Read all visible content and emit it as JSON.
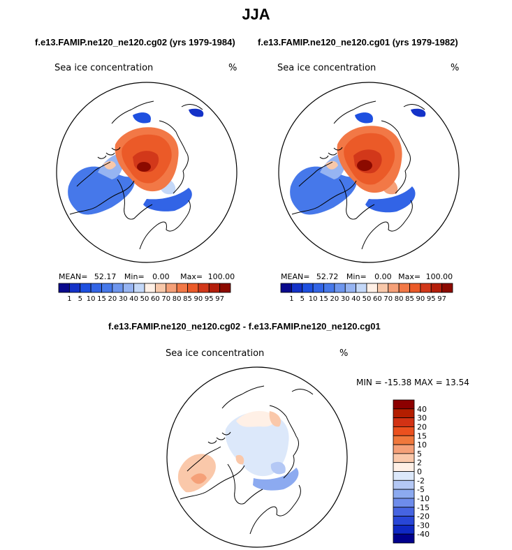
{
  "title": "JJA",
  "panels": [
    {
      "subtitle": "f.e13.FAMIP.ne120_ne120.cg02 (yrs 1979-1984)",
      "variable": "Sea ice concentration",
      "units": "%",
      "stats": {
        "mean_label": "MEAN=",
        "mean": "52.17",
        "min_label": "Min=",
        "min": "0.00",
        "max_label": "Max=",
        "max": "100.00"
      }
    },
    {
      "subtitle": "f.e13.FAMIP.ne120_ne120.cg01 (yrs 1979-1982)",
      "variable": "Sea ice concentration",
      "units": "%",
      "stats": {
        "mean_label": "MEAN=",
        "mean": "52.72",
        "min_label": "Min=",
        "min": "0.00",
        "max_label": "Max=",
        "max": "100.00"
      }
    }
  ],
  "diff_panel": {
    "subtitle": "f.e13.FAMIP.ne120_ne120.cg02 - f.e13.FAMIP.ne120_ne120.cg01",
    "variable": "Sea ice concentration",
    "units": "%",
    "minmax": "MIN = -15.38 MAX =  13.54"
  },
  "chart_data": [
    {
      "type": "heatmap",
      "projection": "north polar stereographic",
      "title": "f.e13.FAMIP.ne120_ne120.cg02 (yrs 1979-1984)",
      "variable": "Sea ice concentration (%)",
      "mean": 52.17,
      "min": 0.0,
      "max": 100.0,
      "levels": [
        "1",
        "5",
        "10",
        "15",
        "20",
        "30",
        "40",
        "50",
        "60",
        "70",
        "80",
        "85",
        "90",
        "95",
        "97"
      ],
      "colors": [
        "#0a0a8c",
        "#1432c8",
        "#1e50e0",
        "#3264e6",
        "#4678ea",
        "#6e96ee",
        "#96b4f2",
        "#c4d8f8",
        "#fff0e6",
        "#f8c8aa",
        "#f5a078",
        "#f27846",
        "#eb5a28",
        "#d2381a",
        "#b41e0a",
        "#8c0a00"
      ]
    },
    {
      "type": "heatmap",
      "projection": "north polar stereographic",
      "title": "f.e13.FAMIP.ne120_ne120.cg01 (yrs 1979-1982)",
      "variable": "Sea ice concentration (%)",
      "mean": 52.72,
      "min": 0.0,
      "max": 100.0,
      "levels": [
        "1",
        "5",
        "10",
        "15",
        "20",
        "30",
        "40",
        "50",
        "60",
        "70",
        "80",
        "85",
        "90",
        "95",
        "97"
      ],
      "colors": [
        "#0a0a8c",
        "#1432c8",
        "#1e50e0",
        "#3264e6",
        "#4678ea",
        "#6e96ee",
        "#96b4f2",
        "#c4d8f8",
        "#fff0e6",
        "#f8c8aa",
        "#f5a078",
        "#f27846",
        "#eb5a28",
        "#d2381a",
        "#b41e0a",
        "#8c0a00"
      ]
    },
    {
      "type": "heatmap",
      "projection": "north polar stereographic",
      "title": "f.e13.FAMIP.ne120_ne120.cg02 - f.e13.FAMIP.ne120_ne120.cg01",
      "variable": "Sea ice concentration (%)",
      "min": -15.38,
      "max": 13.54,
      "levels": [
        "40",
        "30",
        "20",
        "15",
        "10",
        "5",
        "2",
        "0",
        "-2",
        "-5",
        "-10",
        "-15",
        "-20",
        "-30",
        "-40"
      ],
      "colors": [
        "#8c0000",
        "#b41e00",
        "#d23214",
        "#eb501e",
        "#f0783c",
        "#f5a078",
        "#fac8aa",
        "#fff0e6",
        "#dce8fa",
        "#b4c8f5",
        "#8caaf0",
        "#6e8ceb",
        "#4664e1",
        "#2846d7",
        "#0f28c3",
        "#00008c"
      ]
    }
  ]
}
